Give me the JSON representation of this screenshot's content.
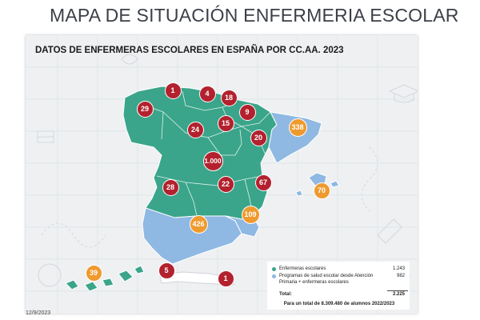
{
  "slide_title": "MAPA DE SITUACIÓN ENFERMERIA ESCOLAR",
  "card_title": "DATOS DE ENFERMERAS ESCOLARES EN ESPAÑA POR CC.AA. 2023",
  "colors": {
    "enfermeras": "#3aa58a",
    "programas": "#8fb8e3",
    "marker_red": "#b3212e",
    "marker_orange": "#ef9a2e"
  },
  "markers": [
    {
      "region": "galicia",
      "label": "29",
      "type": "enfermeras"
    },
    {
      "region": "asturias",
      "label": "1",
      "type": "enfermeras"
    },
    {
      "region": "cantabria",
      "label": "4",
      "type": "enfermeras"
    },
    {
      "region": "pais-vasco",
      "label": "18",
      "type": "enfermeras"
    },
    {
      "region": "navarra",
      "label": "9",
      "type": "enfermeras"
    },
    {
      "region": "la-rioja",
      "label": "15",
      "type": "enfermeras"
    },
    {
      "region": "castilla-y-leon",
      "label": "24",
      "type": "enfermeras"
    },
    {
      "region": "aragon",
      "label": "20",
      "type": "enfermeras"
    },
    {
      "region": "cataluna",
      "label": "338",
      "type": "programas"
    },
    {
      "region": "madrid",
      "label": "1.000",
      "type": "enfermeras"
    },
    {
      "region": "castilla-la-mancha",
      "label": "22",
      "type": "enfermeras"
    },
    {
      "region": "comunidad-valenciana",
      "label": "67",
      "type": "enfermeras"
    },
    {
      "region": "extremadura",
      "label": "28",
      "type": "enfermeras"
    },
    {
      "region": "baleares",
      "label": "70",
      "type": "programas"
    },
    {
      "region": "andalucia",
      "label": "426",
      "type": "programas"
    },
    {
      "region": "murcia",
      "label": "109",
      "type": "programas"
    },
    {
      "region": "canarias",
      "label": "39",
      "type": "programas"
    },
    {
      "region": "ceuta",
      "label": "5",
      "type": "enfermeras"
    },
    {
      "region": "melilla",
      "label": "1",
      "type": "enfermeras"
    }
  ],
  "legend": {
    "rows": [
      {
        "label": "Enfermeras escolares",
        "value": "1.243",
        "color": "#3aa58a"
      },
      {
        "label": "Programas de salud escolar desde Atención Primaria + enfermeras escolares",
        "value": "982",
        "color": "#8fb8e3"
      }
    ],
    "total_label": "Total:",
    "total_value": "2.225"
  },
  "footnote": "Para un total de 8.309.480 de alumnos 2022/2023",
  "date": "12/9/2023"
}
